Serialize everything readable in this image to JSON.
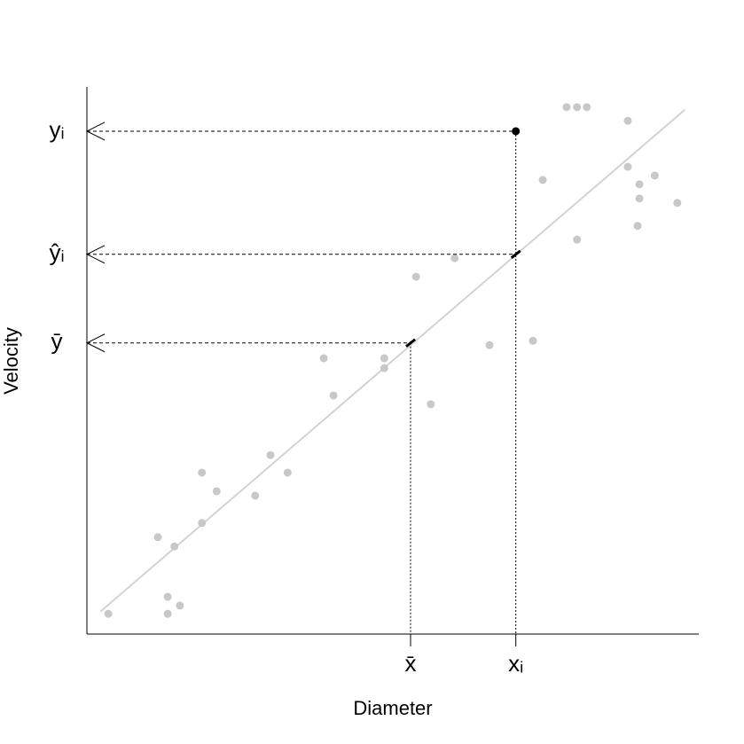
{
  "chart_data": {
    "type": "scatter",
    "x_label": "Diameter",
    "y_label": "Velocity",
    "xlim": [
      0,
      100
    ],
    "ylim": [
      0,
      100
    ],
    "color": "#c8c8c8",
    "x": [
      3.5,
      13.2,
      13.2,
      15.2,
      11.6,
      14.3,
      18.8,
      18.8,
      21.2,
      27.5,
      30.0,
      32.8,
      38.7,
      40.3,
      48.6,
      48.6,
      53.8,
      56.2,
      60.1,
      65.8,
      72.9,
      74.5,
      78.4,
      80.1,
      81.7,
      80.1,
      88.4,
      88.4,
      90.0,
      90.3,
      90.3,
      92.8,
      96.5
    ],
    "values": [
      3.7,
      3.7,
      6.8,
      5.2,
      17.7,
      16.0,
      20.3,
      29.5,
      26.1,
      25.3,
      32.7,
      29.5,
      50.4,
      43.6,
      48.6,
      50.4,
      65.3,
      42.0,
      68.7,
      52.8,
      53.6,
      83.0,
      96.3,
      96.3,
      96.3,
      72.1,
      93.8,
      85.4,
      74.6,
      82.2,
      79.6,
      83.8,
      78.8
    ],
    "fit_line": {
      "x": [
        2.2,
        97.7
      ],
      "values": [
        4.1,
        95.8
      ],
      "color": "#d3d3d3"
    },
    "highlight_color": "#000000",
    "x_markers": [
      {
        "value": 52.9,
        "label": "x̄"
      },
      {
        "value": 70.1,
        "label": "xᵢ"
      }
    ],
    "y_markers": [
      {
        "value": 53.2,
        "label": "ȳ"
      },
      {
        "value": 69.4,
        "label": "ŷᵢ"
      },
      {
        "value": 91.9,
        "label": "yᵢ"
      }
    ]
  }
}
